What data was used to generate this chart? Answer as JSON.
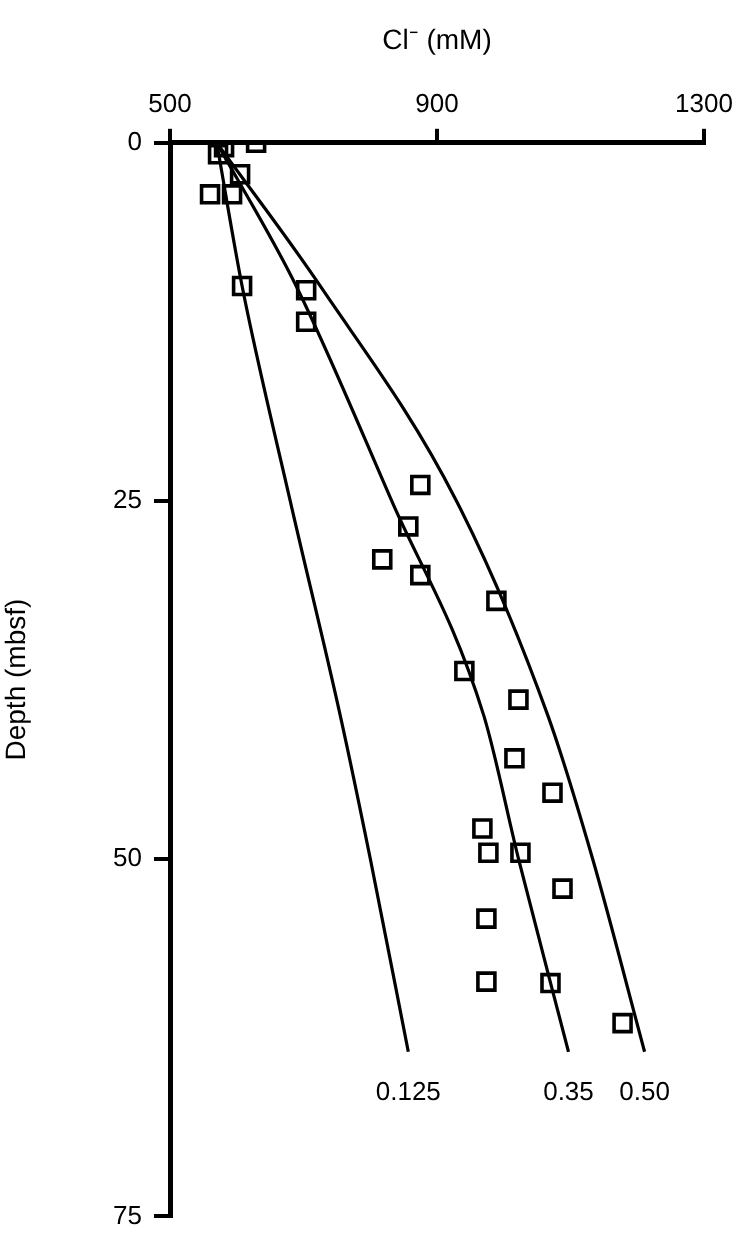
{
  "chart_data": {
    "type": "scatter",
    "xlabel": "Cl⁻ (mM)",
    "ylabel": "Depth (mbsf)",
    "xlim": [
      500,
      1300
    ],
    "xticks": [
      500,
      900,
      1300
    ],
    "ylim": [
      75,
      0
    ],
    "yticks": [
      0,
      25,
      50,
      75
    ],
    "grid": false,
    "legend": false,
    "series": [
      {
        "marker": "square",
        "color": "#000000",
        "x": [
          629,
          581,
          572,
          605,
          593,
          560,
          608,
          704,
          704,
          875,
          857,
          818,
          875,
          989,
          941,
          1022,
          1016,
          1073,
          968,
          977,
          1025,
          1088,
          974,
          974,
          1070,
          1178
        ],
        "values": [
          0,
          0.3,
          0.8,
          2.2,
          3.6,
          3.6,
          10.0,
          10.3,
          12.5,
          23.9,
          26.8,
          29.1,
          30.2,
          32.0,
          36.9,
          38.9,
          43.0,
          45.4,
          47.9,
          49.6,
          49.6,
          52.1,
          54.2,
          58.6,
          58.7,
          61.5
        ]
      },
      {
        "type": "line",
        "marker": "none",
        "name": "0.125",
        "color": "#000000",
        "x": [
          570,
          608,
          680,
          755,
          800,
          857
        ],
        "values": [
          0,
          10,
          25,
          40,
          50,
          63.5
        ]
      },
      {
        "type": "line",
        "marker": "none",
        "name": "0.35",
        "color": "#000000",
        "x": [
          570,
          689,
          832,
          970,
          1022,
          1097
        ],
        "values": [
          0,
          10,
          25,
          40,
          50,
          63.5
        ]
      },
      {
        "type": "line",
        "marker": "none",
        "name": "0.50",
        "color": "#000000",
        "x": [
          570,
          725,
          929,
          1066,
          1133,
          1211
        ],
        "values": [
          0,
          10,
          25,
          40,
          50,
          63.5
        ]
      }
    ]
  }
}
